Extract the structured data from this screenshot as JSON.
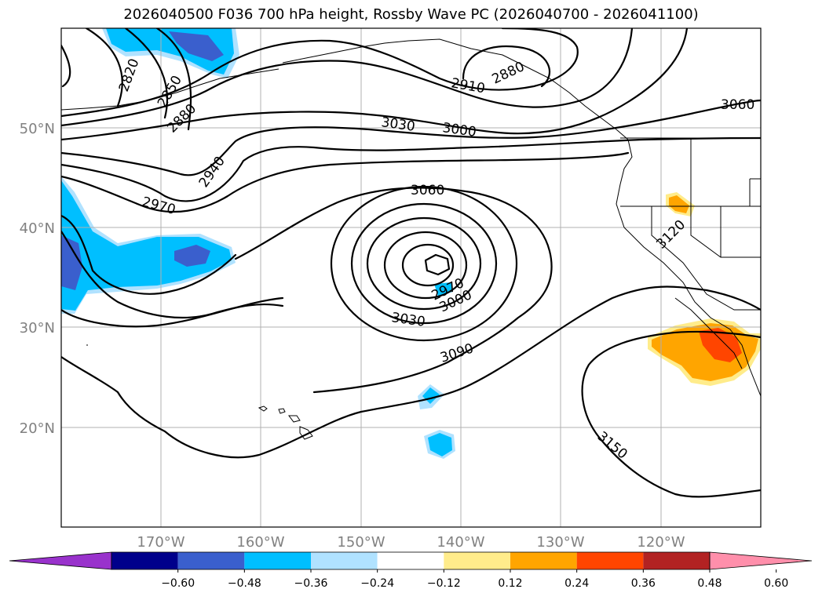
{
  "title": "2026040500 F036 700 hPa height, Rossby Wave PC (2026040700 - 2026041100)",
  "lat_labels": [
    "50°N",
    "40°N",
    "30°N",
    "20°N"
  ],
  "lon_labels": [
    "170°W",
    "160°W",
    "150°W",
    "140°W",
    "130°W",
    "120°W"
  ],
  "contour_labels": [
    "2820",
    "2850",
    "2880",
    "2940",
    "2970",
    "2910",
    "2880",
    "3030",
    "3000",
    "3060",
    "3060",
    "3120",
    "2970",
    "3000",
    "3030",
    "3090",
    "3150"
  ],
  "colorbar": {
    "colors": [
      "#9932cc",
      "#00008b",
      "#3a5fcd",
      "#00bfff",
      "#b0e2ff",
      "#ffffff",
      "#ffec8b",
      "#ffa500",
      "#ff4500",
      "#b22222",
      "#ff8fab"
    ],
    "tick_labels": [
      "−0.60",
      "−0.48",
      "−0.36",
      "−0.24",
      "−0.12",
      "0.12",
      "0.24",
      "0.36",
      "0.48",
      "0.60"
    ]
  }
}
